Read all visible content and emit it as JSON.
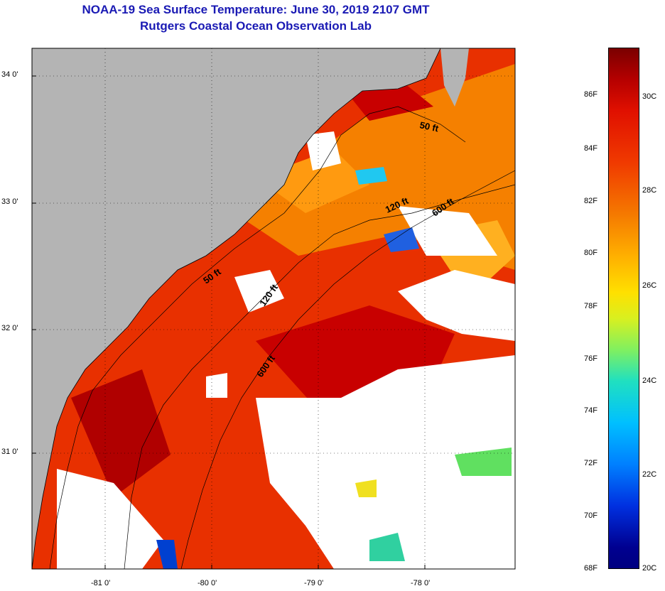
{
  "header": {
    "title": "NOAA-19 Sea Surface Temperature:  June 30, 2019 2107 GMT",
    "subtitle": "Rutgers Coastal Ocean Observation Lab"
  },
  "map": {
    "longitude_ticks": [
      "-81 0'",
      "-80 0'",
      "-79 0'",
      "-78 0'"
    ],
    "latitude_ticks": [
      "34 0'",
      "33 0'",
      "32 0'",
      "31 0'"
    ],
    "contour_labels": [
      "50 ft",
      "120 ft",
      "600 ft",
      "50 ft",
      "120 ft",
      "600 ft"
    ]
  },
  "colorbar": {
    "fahrenheit_labels": [
      "86F",
      "84F",
      "82F",
      "80F",
      "78F",
      "76F",
      "74F",
      "72F",
      "70F",
      "68F"
    ],
    "celsius_labels": [
      "30C",
      "28C",
      "26C",
      "24C",
      "22C",
      "20C"
    ]
  },
  "colors": {
    "title": "#1a1ab4",
    "land": "#b4b4b4",
    "cloud": "#ffffff",
    "hot": "#c00000",
    "warm": "#f04000",
    "mild": "#ff9000",
    "cool": "#00c0ff",
    "cold": "#0030e0"
  }
}
